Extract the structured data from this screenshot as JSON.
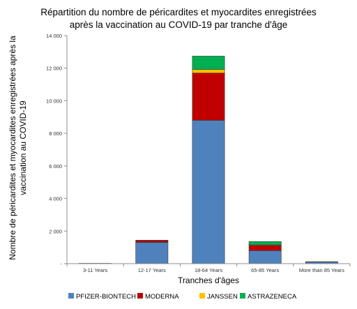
{
  "chart_data": {
    "type": "bar",
    "stacked": true,
    "title": [
      "Répartition du nombre de péricardites et myocardites enregistrées",
      "après la vaccination au COVID-19 par tranche d'âge"
    ],
    "xlabel": "Tranches d'âges",
    "ylabel": [
      "Nombre de péricardites et myocardites enregistrées après la",
      "vaccination au COVID-19"
    ],
    "categories": [
      "3-11 Years",
      "12-17 Years",
      "18-64 Years",
      "65-85 Years",
      "More than 85 Years"
    ],
    "ylim": [
      0,
      14000
    ],
    "yticks": [
      0,
      2000,
      4000,
      6000,
      8000,
      10000,
      12000,
      14000
    ],
    "ytick_labels": [
      "-",
      "2 000",
      "4 000",
      "6 000",
      "8 000",
      "10 000",
      "12 000",
      "14 000"
    ],
    "grid": false,
    "legend_position": "bottom",
    "series": [
      {
        "name": "PFIZER-BIONTECH",
        "color": "#4f81bd",
        "values": [
          15,
          1300,
          8800,
          800,
          100
        ]
      },
      {
        "name": "MODERNA",
        "color": "#c00000",
        "values": [
          5,
          130,
          2900,
          320,
          20
        ]
      },
      {
        "name": "JANSSEN",
        "color": "#ffc000",
        "values": [
          0,
          10,
          220,
          40,
          0
        ]
      },
      {
        "name": "ASTRAZENECA",
        "color": "#00b050",
        "values": [
          0,
          0,
          820,
          200,
          0
        ]
      }
    ]
  }
}
